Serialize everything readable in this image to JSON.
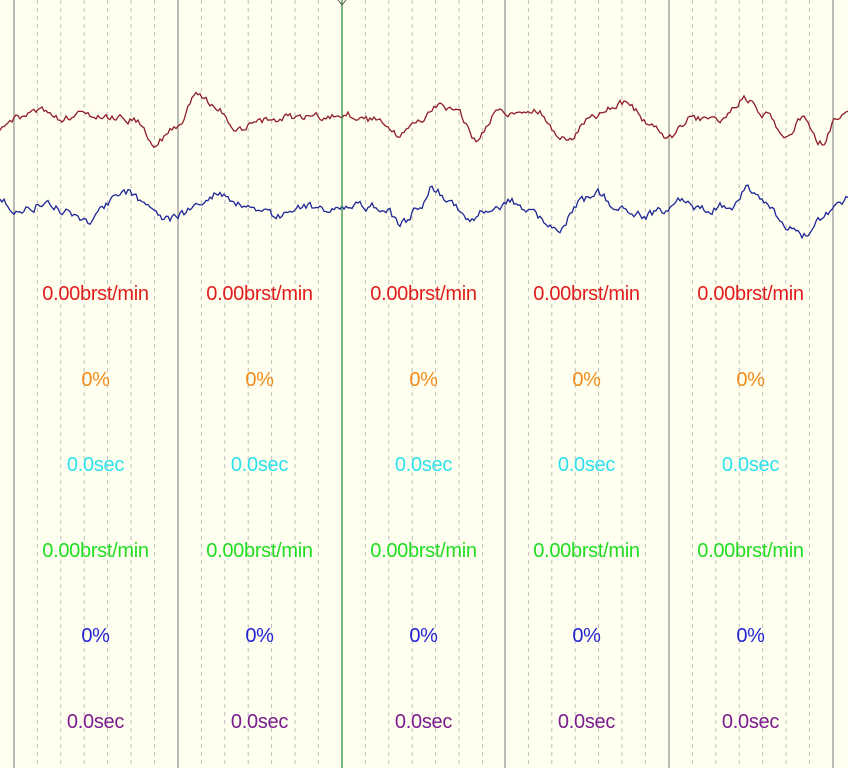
{
  "colors": {
    "background": "#fffff0",
    "major_grid": "#8f8f8f",
    "minor_grid": "#bdbdbd",
    "cursor": "#3f9a4f",
    "trace_1": "#8e1c26",
    "trace_2": "#1d2596"
  },
  "metric_rows": [
    {
      "name": "burst-rate-row-1",
      "color": "#e21c1c",
      "cells": [
        "0.00brst/min",
        "0.00brst/min",
        "0.00brst/min",
        "0.00brst/min",
        "0.00brst/min"
      ]
    },
    {
      "name": "percent-row-1",
      "color": "#f08c1c",
      "cells": [
        "0%",
        "0%",
        "0%",
        "0%",
        "0%"
      ]
    },
    {
      "name": "duration-row-1",
      "color": "#2ee0ee",
      "cells": [
        "0.0sec",
        "0.0sec",
        "0.0sec",
        "0.0sec",
        "0.0sec"
      ]
    },
    {
      "name": "burst-rate-row-2",
      "color": "#22dd22",
      "cells": [
        "0.00brst/min",
        "0.00brst/min",
        "0.00brst/min",
        "0.00brst/min",
        "0.00brst/min"
      ]
    },
    {
      "name": "percent-row-2",
      "color": "#2424d4",
      "cells": [
        "0%",
        "0%",
        "0%",
        "0%",
        "0%"
      ]
    },
    {
      "name": "duration-row-2",
      "color": "#7c1c8e",
      "cells": [
        "0.0sec",
        "0.0sec",
        "0.0sec",
        "0.0sec",
        "0.0sec"
      ]
    }
  ]
}
